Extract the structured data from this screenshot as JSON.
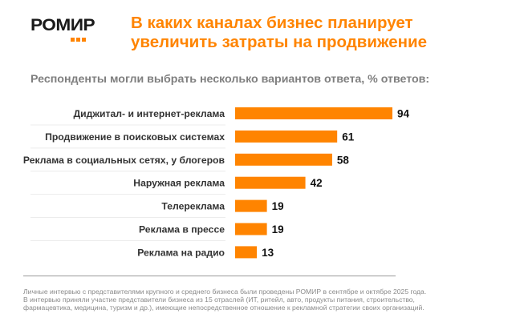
{
  "logo": {
    "text": "РОМИР",
    "accent_color": "#ff8400"
  },
  "header": {
    "title_line1": "В каких каналах бизнес планирует",
    "title_line2": "увеличить затраты на продвижение"
  },
  "chart_data": {
    "type": "bar",
    "orientation": "horizontal",
    "title": "В каких каналах бизнес планирует увеличить затраты на продвижение",
    "subtitle": "Респонденты могли выбрать несколько вариантов ответа, % ответов:",
    "categories": [
      "Диджитал- и интернет-реклама",
      "Продвижение в поисковых системах",
      "Реклама в социальных сетях, у блогеров",
      "Наружная реклама",
      "Телереклама",
      "Реклама в прессе",
      "Реклама на радио"
    ],
    "values": [
      94,
      61,
      58,
      42,
      19,
      19,
      13
    ],
    "unit": "%",
    "xlabel": "",
    "ylabel": "",
    "xlim": [
      0,
      100
    ],
    "grid": false,
    "legend": "none",
    "bar_color": "#ff8400",
    "data_labels": true
  },
  "footnote": {
    "lines": [
      "Личные интервью с представителями крупного и среднего бизнеса были проведены РОМИР в сентябре и октябре 2025 года.",
      "В интервью приняли участие представители бизнеса из 15 отраслей (ИТ, ритейл, авто, продукты питания, строительство,",
      "фармацевтика, медицина, туризм и др.), имеющие непосредственное отношение к рекламной стратегии своих организаций."
    ]
  }
}
